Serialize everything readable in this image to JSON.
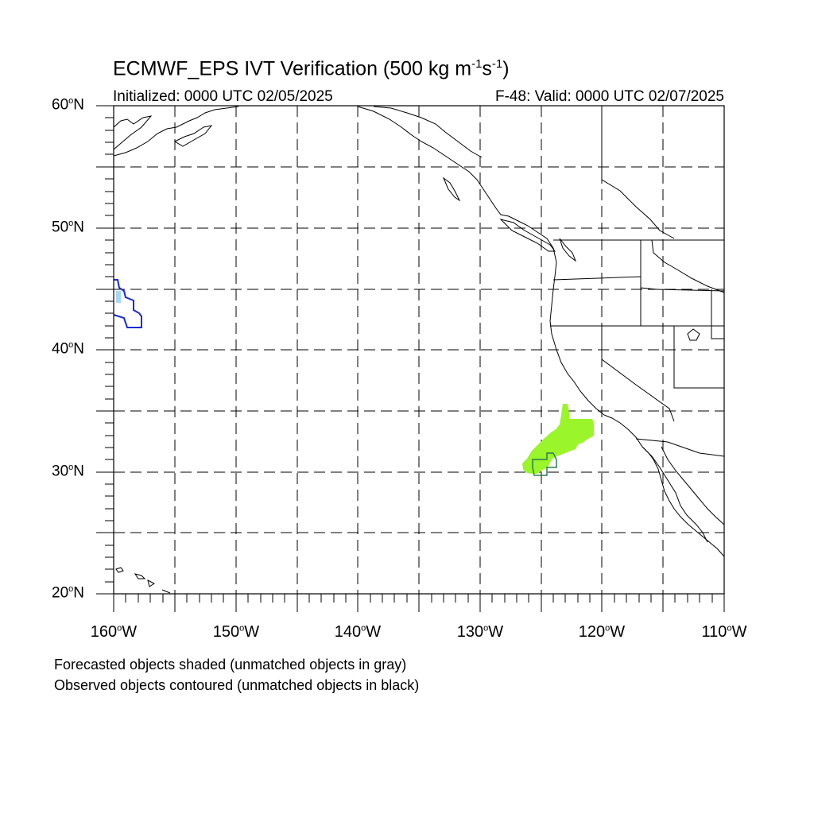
{
  "title": {
    "prefix": "ECMWF_EPS IVT Verification (500 kg m",
    "exp1": "-1",
    "mid": "s",
    "exp2": "-1",
    "suffix": ")"
  },
  "initialized": "Initialized: 0000 UTC 02/05/2025",
  "valid": "F-48: Valid: 0000 UTC 02/07/2025",
  "lat_labels": [
    {
      "value": "60",
      "hemi": "N"
    },
    {
      "value": "50",
      "hemi": "N"
    },
    {
      "value": "40",
      "hemi": "N"
    },
    {
      "value": "30",
      "hemi": "N"
    },
    {
      "value": "20",
      "hemi": "N"
    }
  ],
  "lon_labels": [
    {
      "value": "160",
      "hemi": "W"
    },
    {
      "value": "150",
      "hemi": "W"
    },
    {
      "value": "140",
      "hemi": "W"
    },
    {
      "value": "130",
      "hemi": "W"
    },
    {
      "value": "120",
      "hemi": "W"
    },
    {
      "value": "110",
      "hemi": "W"
    }
  ],
  "degree_symbol": "o",
  "notes": [
    "Forecasted objects shaded (unmatched objects in gray)",
    "Observed objects contoured (unmatched objects in black)"
  ],
  "map_extent": {
    "lon": [
      -160,
      -110
    ],
    "lat": [
      20,
      60
    ]
  },
  "colors": {
    "forecast_fill": "#9af52a",
    "forecast_small_fill": "#a6d8f0",
    "observed_contour_matched": "#1a2bd6",
    "observed_contour_small": "#2e7d4f",
    "coastline": "#000000",
    "grid": "#000000"
  },
  "objects": {
    "forecast_object_label": "forecast-ivt-object",
    "observed_object_label": "observed-ivt-object"
  }
}
